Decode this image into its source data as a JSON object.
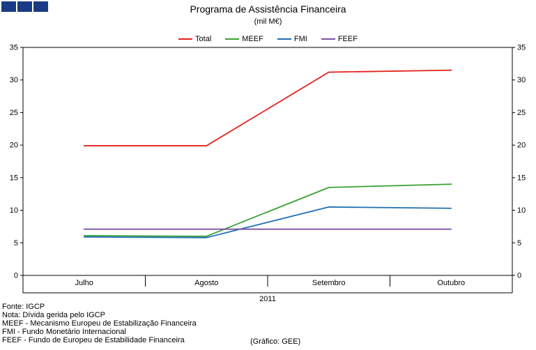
{
  "logo": {
    "color": "#1b3a85"
  },
  "chart_data": {
    "type": "line",
    "title": "Programa de Assistência Financeira",
    "subtitle": "(mil M€)",
    "categories": [
      "Julho",
      "Agosto",
      "Setembro",
      "Outubro"
    ],
    "group_label": "2011",
    "xlabel": "",
    "ylabel": "",
    "ylim": [
      0,
      35
    ],
    "ytick_step": 5,
    "grid": false,
    "legend_position": "top",
    "series": [
      {
        "name": "Total",
        "color": "#e3211c",
        "values": [
          19.9,
          19.9,
          31.2,
          31.5
        ]
      },
      {
        "name": "MEEF",
        "color": "#3aa035",
        "values": [
          6.1,
          6.0,
          13.5,
          14.0
        ]
      },
      {
        "name": "FMI",
        "color": "#1f6fb4",
        "values": [
          5.9,
          5.8,
          10.5,
          10.3
        ]
      },
      {
        "name": "FEEF",
        "color": "#7a52a3",
        "values": [
          7.1,
          7.1,
          7.1,
          7.1
        ]
      }
    ]
  },
  "footer": {
    "lines": [
      "Fonte: IGCP",
      "Nota: Dívida gerida pelo IGCP",
      "MEEF - Mecanismo Europeu de Estabilização Financeira",
      "FMI - Fundo Monetário Internacional",
      "FEEF - Fundo de Europeu de Estabilidade Financeira"
    ],
    "credit": "(Gráfico: GEE)"
  }
}
